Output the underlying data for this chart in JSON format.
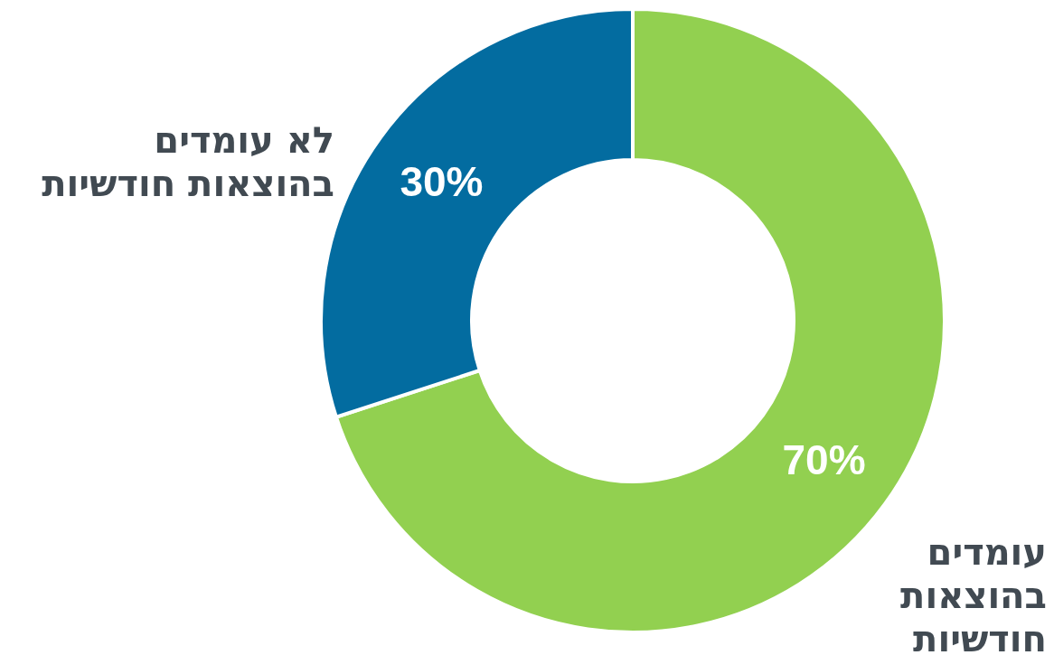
{
  "chart_data": {
    "type": "donut",
    "categories": [
      "עומדים בהוצאות חודשיות",
      "לא עומדים בהוצאות חודשיות"
    ],
    "values": [
      70,
      30
    ],
    "colors": [
      "#92d050",
      "#036ca0"
    ],
    "value_labels": [
      "70%",
      "30%"
    ]
  }
}
